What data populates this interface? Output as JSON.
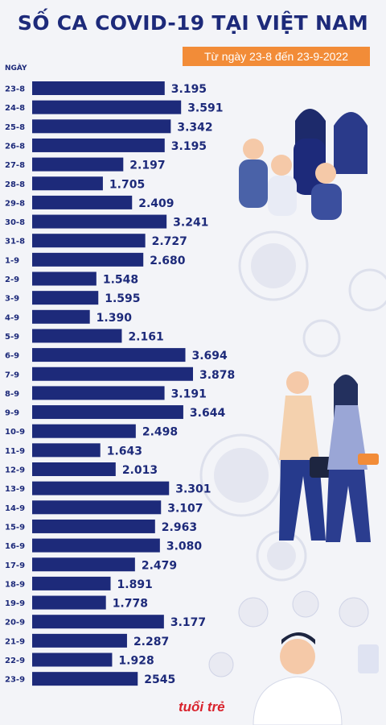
{
  "title": "SỐ CA COVID-19 TẠI VIỆT NAM",
  "subtitle": "Từ ngày 23-8 đến 23-9-2022",
  "axis_header": "NGÀY",
  "logo": "tuổi trẻ",
  "colors": {
    "bar": "#1d2a7a",
    "accent": "#f28c38",
    "background": "#f3f4f8"
  },
  "chart_data": {
    "type": "bar",
    "orientation": "horizontal",
    "categories": [
      "23-8",
      "24-8",
      "25-8",
      "26-8",
      "27-8",
      "28-8",
      "29-8",
      "30-8",
      "31-8",
      "1-9",
      "2-9",
      "3-9",
      "4-9",
      "5-9",
      "6-9",
      "7-9",
      "8-9",
      "9-9",
      "10-9",
      "11-9",
      "12-9",
      "13-9",
      "14-9",
      "15-9",
      "16-9",
      "17-9",
      "18-9",
      "19-9",
      "20-9",
      "21-9",
      "22-9",
      "23-9"
    ],
    "values": [
      3195,
      3591,
      3342,
      3195,
      2197,
      1705,
      2409,
      3241,
      2727,
      2680,
      1548,
      1595,
      1390,
      2161,
      3694,
      3878,
      3191,
      3644,
      2498,
      1643,
      2013,
      3301,
      3107,
      2963,
      3080,
      2479,
      1891,
      1778,
      3177,
      2287,
      1928,
      2545
    ],
    "value_labels": [
      "3.195",
      "3.591",
      "3.342",
      "3.195",
      "2.197",
      "1.705",
      "2.409",
      "3.241",
      "2.727",
      "2.680",
      "1.548",
      "1.595",
      "1.390",
      "2.161",
      "3.694",
      "3.878",
      "3.191",
      "3.644",
      "2.498",
      "1.643",
      "2.013",
      "3.301",
      "3.107",
      "2.963",
      "3.080",
      "2.479",
      "1.891",
      "1.778",
      "3.177",
      "2.287",
      "1.928",
      "2545"
    ],
    "ylabel": "NGÀY"
  }
}
